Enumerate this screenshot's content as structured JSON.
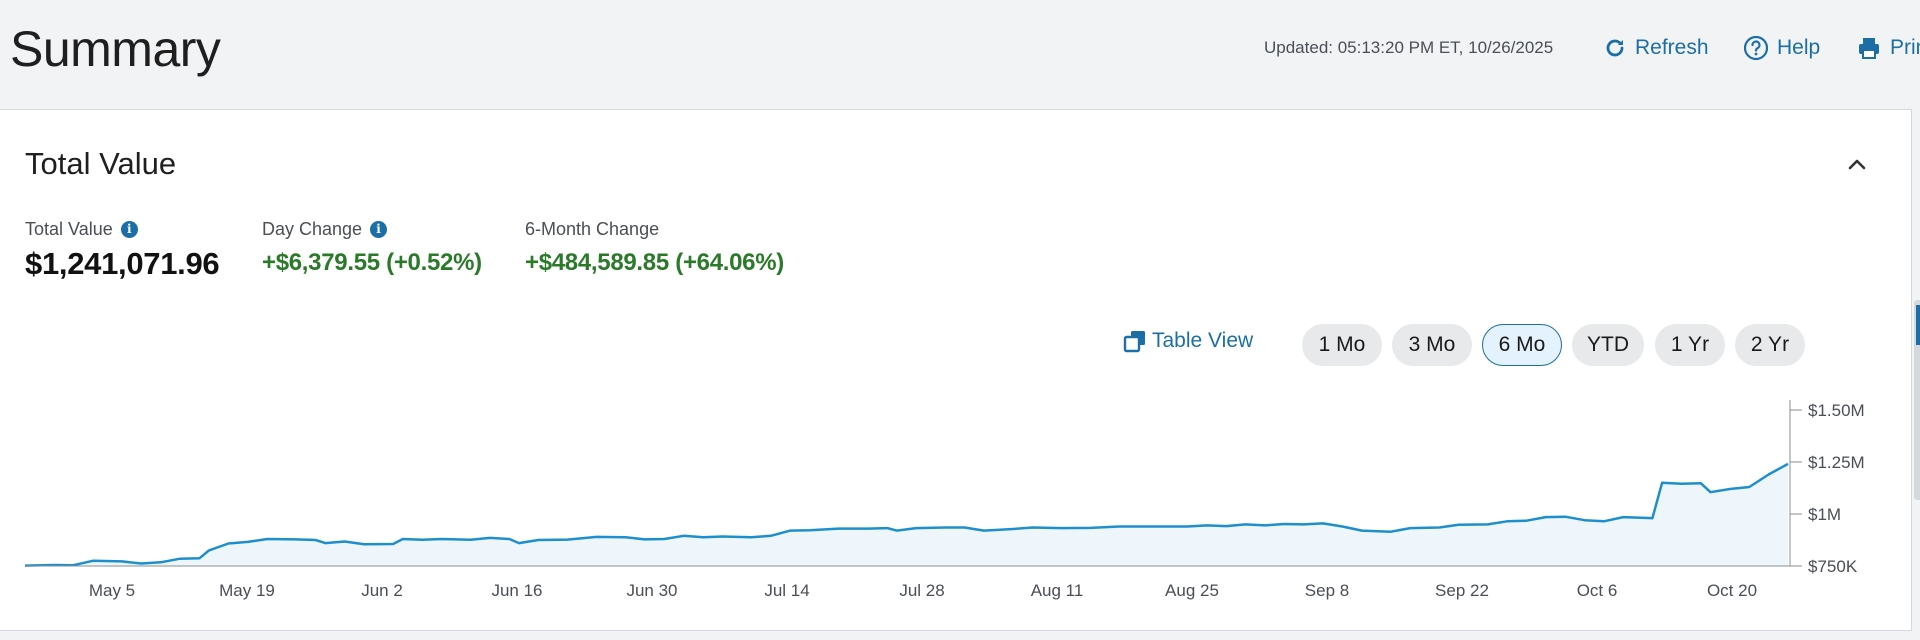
{
  "header": {
    "title": "Summary",
    "updated": "Updated: 05:13:20 PM ET, 10/26/2025",
    "refresh_label": "Refresh",
    "help_label": "Help",
    "print_label": "Print",
    "icon_color": "#1c6fa6"
  },
  "card": {
    "title": "Total Value",
    "metrics": [
      {
        "label": "Total Value",
        "value": "$1,241,071.96",
        "info": true
      },
      {
        "label": "Day Change",
        "value": "+$6,379.55 (+0.52%)",
        "info": true
      },
      {
        "label": "6-Month Change",
        "value": "+$484,589.85 (+64.06%)",
        "info": false
      }
    ],
    "positive_color": "#2a7a2a",
    "table_view_label": "Table View",
    "ranges": [
      "1 Mo",
      "3 Mo",
      "6 Mo",
      "YTD",
      "1 Yr",
      "2 Yr"
    ],
    "selected_range": "6 Mo"
  },
  "chart_data": {
    "type": "area",
    "title": "",
    "xlabel": "",
    "ylabel": "",
    "x_ticks": [
      "May 5",
      "May 19",
      "Jun 2",
      "Jun 16",
      "Jun 30",
      "Jul 14",
      "Jul 28",
      "Aug 11",
      "Aug 25",
      "Sep 8",
      "Sep 22",
      "Oct 6",
      "Oct 20"
    ],
    "y_ticks": [
      "$750K",
      "$1M",
      "$1.25M",
      "$1.50M"
    ],
    "ylim": [
      750000,
      1500000
    ],
    "x_start": "2025-04-27",
    "x_end": "2025-10-26",
    "line_color": "#1e8fcd",
    "fill_color": "#eef6fc",
    "series": [
      {
        "points": [
          [
            "2025-04-27",
            752000
          ],
          [
            "2025-04-30",
            755000
          ],
          [
            "2025-05-02",
            754000
          ],
          [
            "2025-05-04",
            775000
          ],
          [
            "2025-05-07",
            772000
          ],
          [
            "2025-05-09",
            762000
          ],
          [
            "2025-05-11",
            768000
          ],
          [
            "2025-05-13",
            785000
          ],
          [
            "2025-05-15",
            787000
          ],
          [
            "2025-05-16",
            825000
          ],
          [
            "2025-05-18",
            858000
          ],
          [
            "2025-05-20",
            866000
          ],
          [
            "2025-05-22",
            880000
          ],
          [
            "2025-05-25",
            878000
          ],
          [
            "2025-05-27",
            875000
          ],
          [
            "2025-05-28",
            860000
          ],
          [
            "2025-05-30",
            868000
          ],
          [
            "2025-06-01",
            855000
          ],
          [
            "2025-06-04",
            856000
          ],
          [
            "2025-06-05",
            880000
          ],
          [
            "2025-06-07",
            876000
          ],
          [
            "2025-06-09",
            880000
          ],
          [
            "2025-06-12",
            876000
          ],
          [
            "2025-06-14",
            885000
          ],
          [
            "2025-06-16",
            880000
          ],
          [
            "2025-06-17",
            860000
          ],
          [
            "2025-06-19",
            875000
          ],
          [
            "2025-06-22",
            877000
          ],
          [
            "2025-06-25",
            890000
          ],
          [
            "2025-06-28",
            888000
          ],
          [
            "2025-06-30",
            878000
          ],
          [
            "2025-07-02",
            880000
          ],
          [
            "2025-07-04",
            895000
          ],
          [
            "2025-07-06",
            888000
          ],
          [
            "2025-07-08",
            892000
          ],
          [
            "2025-07-11",
            888000
          ],
          [
            "2025-07-13",
            895000
          ],
          [
            "2025-07-15",
            920000
          ],
          [
            "2025-07-17",
            922000
          ],
          [
            "2025-07-20",
            930000
          ],
          [
            "2025-07-23",
            930000
          ],
          [
            "2025-07-25",
            932000
          ],
          [
            "2025-07-26",
            920000
          ],
          [
            "2025-07-28",
            932000
          ],
          [
            "2025-07-31",
            935000
          ],
          [
            "2025-08-02",
            935000
          ],
          [
            "2025-08-04",
            920000
          ],
          [
            "2025-08-07",
            928000
          ],
          [
            "2025-08-09",
            935000
          ],
          [
            "2025-08-12",
            932000
          ],
          [
            "2025-08-15",
            933000
          ],
          [
            "2025-08-18",
            940000
          ],
          [
            "2025-08-22",
            940000
          ],
          [
            "2025-08-25",
            940000
          ],
          [
            "2025-08-27",
            945000
          ],
          [
            "2025-08-29",
            942000
          ],
          [
            "2025-08-31",
            950000
          ],
          [
            "2025-09-02",
            945000
          ],
          [
            "2025-09-04",
            952000
          ],
          [
            "2025-09-06",
            950000
          ],
          [
            "2025-09-08",
            955000
          ],
          [
            "2025-09-10",
            940000
          ],
          [
            "2025-09-12",
            920000
          ],
          [
            "2025-09-15",
            915000
          ],
          [
            "2025-09-17",
            932000
          ],
          [
            "2025-09-20",
            935000
          ],
          [
            "2025-09-22",
            948000
          ],
          [
            "2025-09-25",
            950000
          ],
          [
            "2025-09-27",
            965000
          ],
          [
            "2025-09-29",
            968000
          ],
          [
            "2025-10-01",
            985000
          ],
          [
            "2025-10-03",
            987000
          ],
          [
            "2025-10-05",
            970000
          ],
          [
            "2025-10-07",
            965000
          ],
          [
            "2025-10-09",
            985000
          ],
          [
            "2025-10-12",
            980000
          ],
          [
            "2025-10-13",
            1150000
          ],
          [
            "2025-10-15",
            1145000
          ],
          [
            "2025-10-17",
            1148000
          ],
          [
            "2025-10-18",
            1105000
          ],
          [
            "2025-10-20",
            1120000
          ],
          [
            "2025-10-22",
            1130000
          ],
          [
            "2025-10-24",
            1190000
          ],
          [
            "2025-10-26",
            1241071.96
          ]
        ]
      }
    ]
  }
}
